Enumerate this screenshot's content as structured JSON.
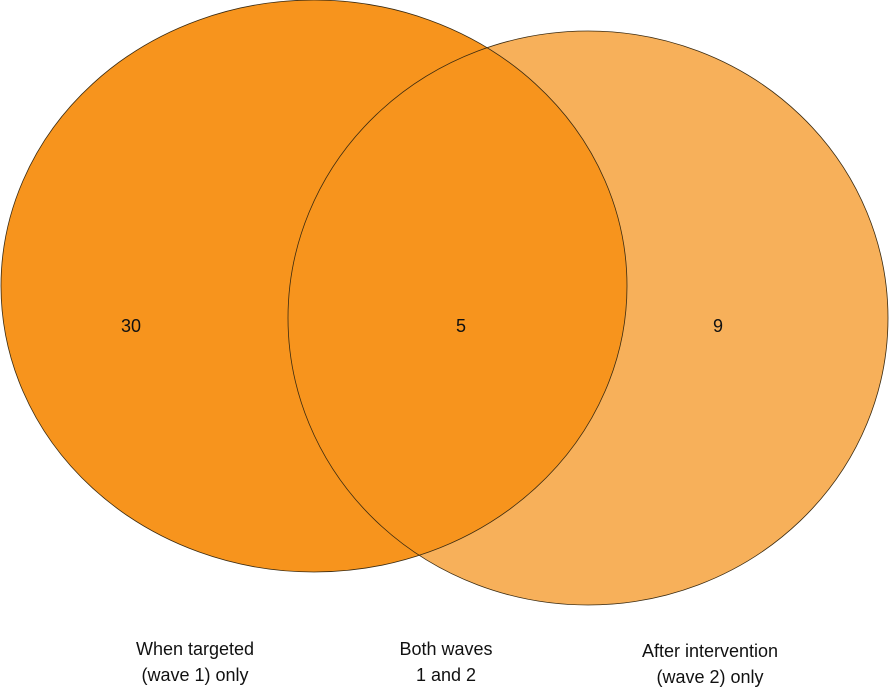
{
  "regions": [
    {
      "count": 30,
      "label": [
        "When targeted",
        "(wave 1) only"
      ]
    },
    {
      "count": 5,
      "label": [
        "Both waves",
        "1 and 2"
      ]
    },
    {
      "count": 9,
      "label": [
        "After intervention",
        "(wave 2) only"
      ]
    }
  ]
}
